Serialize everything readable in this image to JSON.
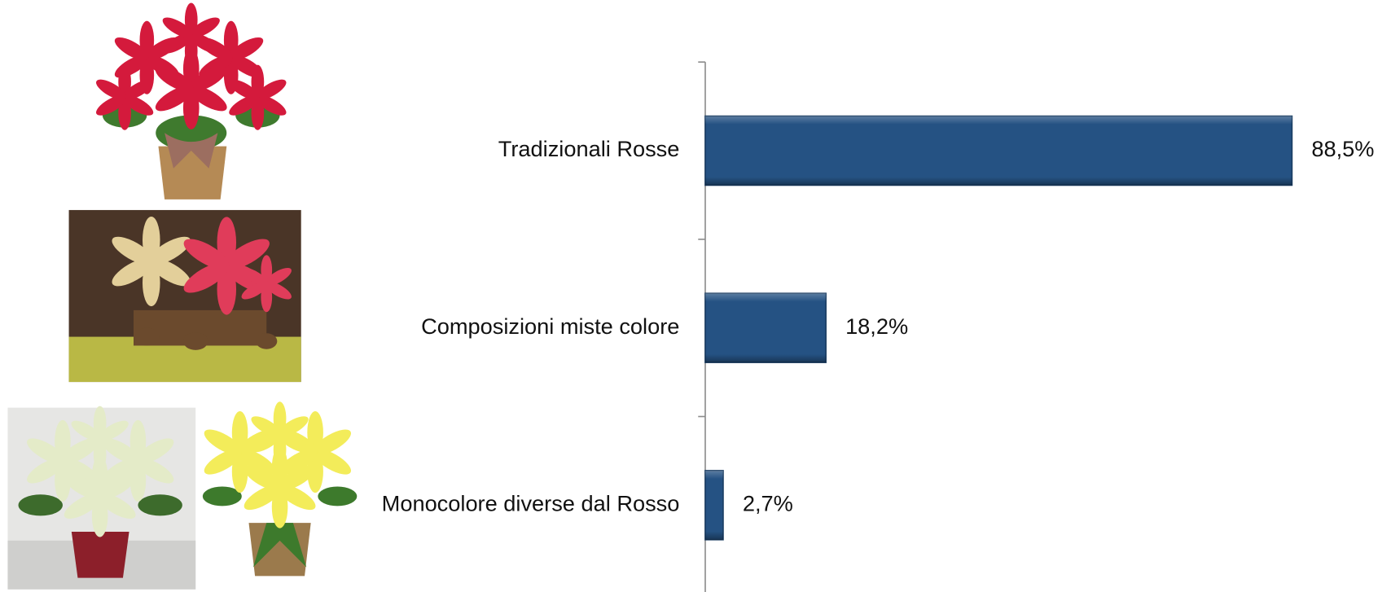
{
  "chart_data": {
    "type": "bar",
    "orientation": "horizontal",
    "categories": [
      "Tradizionali Rosse",
      "Composizioni miste colore",
      "Monocolore diverse dal Rosso"
    ],
    "values": [
      88.5,
      18.2,
      2.7
    ],
    "value_labels": [
      "88,5%",
      "18,2%",
      "2,7%"
    ],
    "color": "#255283",
    "xlim": [
      0,
      100
    ]
  }
}
